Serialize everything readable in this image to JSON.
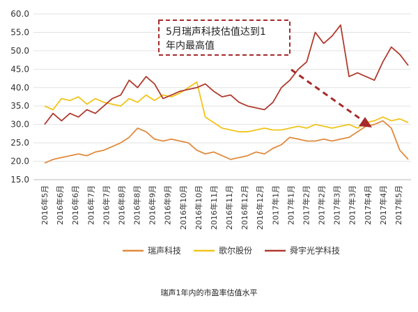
{
  "chart_data": {
    "type": "line",
    "title": "",
    "caption": "瑞声1年内的市盈率估值水平",
    "ylim": [
      15.0,
      60.0
    ],
    "y_ticks": [
      "15.0",
      "20.0",
      "25.0",
      "30.0",
      "35.0",
      "40.0",
      "45.0",
      "50.0",
      "55.0",
      "60.0"
    ],
    "x_tick_labels": [
      "2016年5月",
      "2016年6月",
      "2016年6月",
      "2016年7月",
      "2016年7月",
      "2016年8月",
      "2016年8月",
      "2016年9月",
      "2016年9月",
      "2016年10月",
      "2016年10月",
      "2016年11月",
      "2016年11月",
      "2016年12月",
      "2016年12月",
      "2017年1月",
      "2017年1月",
      "2017年2月",
      "2017年2月",
      "2017年3月",
      "2017年3月",
      "2017年4月",
      "2017年4月",
      "2017年5月"
    ],
    "legend": {
      "position": "bottom"
    },
    "annotation": {
      "lines": [
        "5月瑞声科技估值达到1",
        "年内最高值"
      ],
      "style": "dashed-box-with-arrow",
      "color": "#a52a2a"
    },
    "series": [
      {
        "name": "瑞声科技",
        "color": "#e08a3c",
        "values": [
          19.5,
          20.5,
          21.0,
          21.5,
          22.0,
          21.5,
          22.5,
          23.0,
          24.0,
          25.0,
          26.5,
          29.0,
          28.0,
          26.0,
          25.5,
          26.0,
          25.5,
          25.0,
          23.0,
          22.0,
          22.5,
          21.5,
          20.5,
          21.0,
          21.5,
          22.5,
          22.0,
          23.5,
          24.5,
          26.5,
          26.0,
          25.5,
          25.5,
          26.0,
          25.5,
          26.0,
          26.5,
          28.0,
          29.5,
          30.0,
          31.0,
          29.0,
          23.0,
          20.5
        ]
      },
      {
        "name": "歌尔股份",
        "color": "#f0c419",
        "values": [
          35.0,
          34.0,
          37.0,
          36.5,
          37.5,
          35.5,
          37.0,
          36.0,
          35.5,
          35.0,
          37.0,
          36.0,
          38.0,
          36.5,
          38.0,
          37.5,
          38.5,
          40.0,
          41.5,
          32.0,
          30.5,
          29.0,
          28.5,
          28.0,
          28.0,
          28.5,
          29.0,
          28.5,
          28.5,
          29.0,
          29.5,
          29.0,
          30.0,
          29.5,
          29.0,
          29.5,
          30.0,
          29.0,
          30.5,
          31.0,
          32.0,
          31.0,
          31.5,
          30.5
        ]
      },
      {
        "name": "舜宇光学科技",
        "color": "#b03a2e",
        "values": [
          30.0,
          33.0,
          31.0,
          33.0,
          32.0,
          34.0,
          33.0,
          35.0,
          37.0,
          38.0,
          42.0,
          40.0,
          43.0,
          41.0,
          37.0,
          38.0,
          39.0,
          39.5,
          40.0,
          41.0,
          39.0,
          37.5,
          38.0,
          36.0,
          35.0,
          34.5,
          34.0,
          36.0,
          40.0,
          42.0,
          45.0,
          47.0,
          55.0,
          52.0,
          54.0,
          57.0,
          43.0,
          44.0,
          43.0,
          42.0,
          47.0,
          51.0,
          49.0,
          46.0
        ]
      }
    ]
  }
}
